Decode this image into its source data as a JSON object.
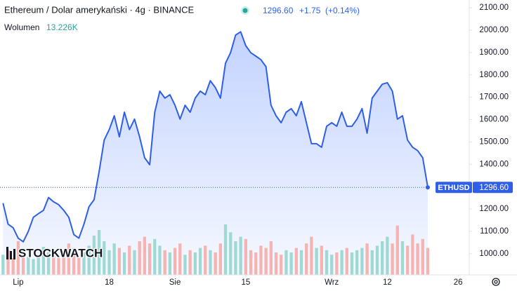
{
  "chart_data": {
    "type": "line",
    "title": "Ethereum / Dolar amerykański · 4g · BINANCE",
    "header_price": "1296.60",
    "change": "+1.75",
    "change_pct": "(+0.14%)",
    "volume_label": "Wolumen",
    "volume_value": "13.226K",
    "watermark": "STOCKWATCH",
    "x": [
      -3,
      -2,
      -1,
      0,
      1,
      2,
      3,
      4,
      5,
      6,
      7,
      8,
      9,
      10,
      11,
      12,
      13,
      14,
      15,
      16,
      17,
      18,
      19,
      20,
      21,
      22,
      23,
      24,
      25,
      26,
      27,
      28,
      29,
      30,
      31,
      32,
      33,
      34,
      35,
      36,
      37,
      38,
      39,
      40,
      41,
      42,
      43,
      44,
      45,
      46,
      47,
      48,
      49,
      50,
      51,
      52,
      53,
      54,
      55,
      56,
      57,
      58,
      59,
      60,
      61,
      62,
      63,
      64,
      65,
      66,
      67,
      68,
      69,
      70,
      71,
      72,
      73,
      74,
      75,
      76,
      77,
      78,
      79,
      80,
      81
    ],
    "series": [
      {
        "name": "ETHUSD",
        "color": "#2f5fe8",
        "values": [
          1226,
          1132,
          1116,
          1069,
          1053,
          1100,
          1163,
          1179,
          1194,
          1251,
          1232,
          1219,
          1194,
          1163,
          1085,
          1069,
          1132,
          1210,
          1241,
          1367,
          1508,
          1555,
          1617,
          1523,
          1633,
          1555,
          1602,
          1523,
          1429,
          1398,
          1633,
          1727,
          1696,
          1711,
          1664,
          1602,
          1664,
          1633,
          1696,
          1727,
          1711,
          1774,
          1743,
          1696,
          1852,
          1899,
          1978,
          1993,
          1931,
          1899,
          1884,
          1868,
          1837,
          1664,
          1617,
          1586,
          1633,
          1649,
          1617,
          1680,
          1586,
          1492,
          1492,
          1476,
          1570,
          1586,
          1570,
          1633,
          1570,
          1570,
          1602,
          1649,
          1539,
          1696,
          1727,
          1758,
          1765,
          1727,
          1602,
          1617,
          1508,
          1476,
          1461,
          1429,
          1296.6
        ],
        "value_labels": [
          null,
          null,
          null,
          null,
          null,
          null,
          null,
          null,
          null,
          null,
          null,
          null,
          null,
          null,
          null,
          null,
          null,
          null,
          null,
          null,
          null,
          null,
          null,
          null,
          null,
          null,
          null,
          null,
          null,
          null,
          null,
          null,
          null,
          null,
          null,
          null,
          null,
          null,
          null,
          null,
          null,
          null,
          null,
          null,
          null,
          null,
          null,
          null,
          null,
          null,
          null,
          null,
          null,
          null,
          null,
          null,
          null,
          null,
          null,
          null,
          null,
          null,
          null,
          null,
          null,
          null,
          null,
          null,
          null,
          null,
          null,
          null,
          null,
          null,
          null,
          null,
          null,
          null,
          null,
          null,
          null,
          null,
          null,
          null,
          "1296.60"
        ]
      },
      {
        "name": "Wolumen",
        "up_color": "#9fd9d3",
        "down_color": "#f5b3b1",
        "values": [
          18,
          22,
          15,
          30,
          20,
          16,
          14,
          18,
          25,
          20,
          17,
          15,
          19,
          28,
          24,
          16,
          20,
          26,
          35,
          40,
          30,
          22,
          28,
          24,
          20,
          26,
          22,
          30,
          34,
          28,
          32,
          26,
          22,
          20,
          24,
          28,
          18,
          22,
          20,
          24,
          26,
          22,
          20,
          28,
          45,
          38,
          30,
          34,
          32,
          22,
          20,
          26,
          24,
          30,
          20,
          18,
          22,
          20,
          24,
          22,
          28,
          34,
          24,
          26,
          22,
          18,
          20,
          22,
          24,
          20,
          22,
          24,
          28,
          22,
          26,
          30,
          34,
          28,
          44,
          30,
          26,
          36,
          28,
          32,
          24
        ]
      }
    ],
    "xlim": [
      -3.6,
      89.2
    ],
    "xticks": [
      {
        "value": 0,
        "label": "Lip"
      },
      18,
      {
        "value": 31,
        "label": "Sie"
      },
      {
        "value": 45,
        "label": "15"
      },
      {
        "value": 62,
        "label": "Wrz"
      },
      {
        "value": 73,
        "label": "12"
      },
      {
        "value": 87,
        "label": "26"
      }
    ],
    "ylim": [
      905,
      2135
    ],
    "yticks": [
      {
        "value": 2100,
        "label": "2100.00"
      },
      {
        "value": 2000,
        "label": "2000.00"
      },
      {
        "value": 1900,
        "label": "1900.00"
      },
      {
        "value": 1800,
        "label": "1800.00"
      },
      {
        "value": 1700,
        "label": "1700.00"
      },
      {
        "value": 1600,
        "label": "1600.00"
      },
      {
        "value": 1500,
        "label": "1500.00"
      },
      {
        "value": 1400,
        "label": "1400.00"
      },
      {
        "value": 1300,
        "label": "1300.00"
      },
      {
        "value": 1200,
        "label": "1200.00"
      },
      {
        "value": 1100,
        "label": "1100.00"
      },
      {
        "value": 1000,
        "label": "1000.00"
      }
    ],
    "grid": false
  }
}
